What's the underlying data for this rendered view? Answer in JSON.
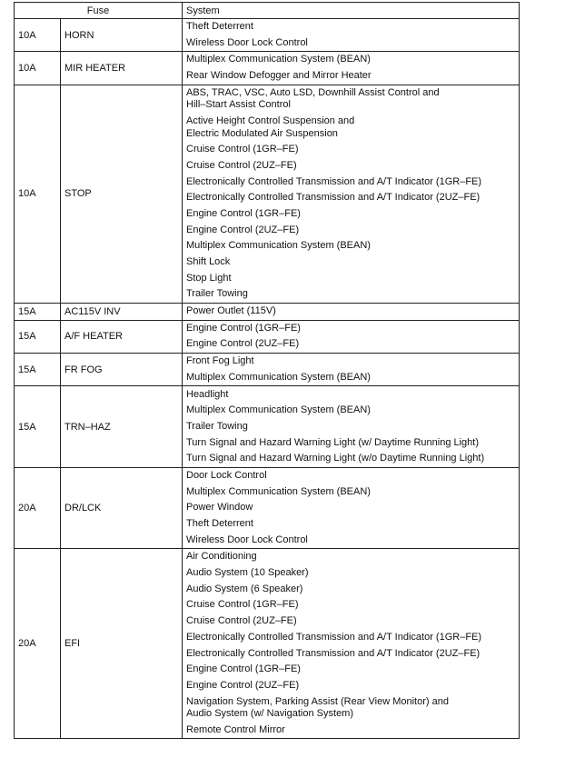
{
  "headers": {
    "fuse": "Fuse",
    "system": "System"
  },
  "rows": [
    {
      "amp": "10A",
      "name": "HORN",
      "systems": [
        "Theft Deterrent",
        "Wireless Door Lock Control"
      ]
    },
    {
      "amp": "10A",
      "name": "MIR HEATER",
      "systems": [
        "Multiplex Communication System (BEAN)",
        "Rear Window Defogger and Mirror Heater"
      ]
    },
    {
      "amp": "10A",
      "name": "STOP",
      "systems": [
        "ABS, TRAC, VSC, Auto LSD, Downhill Assist Control and\nHill–Start Assist Control",
        "Active Height Control Suspension and\nElectric Modulated Air Suspension",
        "Cruise Control (1GR–FE)",
        "Cruise Control (2UZ–FE)",
        "Electronically Controlled Transmission and A/T Indicator (1GR–FE)",
        "Electronically Controlled Transmission and A/T Indicator (2UZ–FE)",
        "Engine Control (1GR–FE)",
        "Engine Control (2UZ–FE)",
        "Multiplex Communication System (BEAN)",
        "Shift Lock",
        "Stop Light",
        "Trailer Towing"
      ]
    },
    {
      "amp": "15A",
      "name": "AC115V INV",
      "systems": [
        "Power Outlet (115V)"
      ]
    },
    {
      "amp": "15A",
      "name": "A/F HEATER",
      "systems": [
        "Engine Control (1GR–FE)",
        "Engine Control (2UZ–FE)"
      ]
    },
    {
      "amp": "15A",
      "name": "FR FOG",
      "systems": [
        "Front Fog Light",
        "Multiplex Communication System (BEAN)"
      ]
    },
    {
      "amp": "15A",
      "name": "TRN–HAZ",
      "systems": [
        "Headlight",
        "Multiplex Communication System (BEAN)",
        "Trailer Towing",
        "Turn Signal and Hazard Warning Light (w/ Daytime Running Light)",
        "Turn Signal and Hazard Warning Light (w/o Daytime Running Light)"
      ]
    },
    {
      "amp": "20A",
      "name": "DR/LCK",
      "systems": [
        "Door Lock Control",
        "Multiplex Communication System (BEAN)",
        "Power Window",
        "Theft Deterrent",
        "Wireless Door Lock Control"
      ]
    },
    {
      "amp": "20A",
      "name": "EFI",
      "systems": [
        "Air Conditioning",
        "Audio System (10 Speaker)",
        "Audio System (6 Speaker)",
        "Cruise Control (1GR–FE)",
        "Cruise Control (2UZ–FE)",
        "Electronically Controlled Transmission and A/T Indicator (1GR–FE)",
        "Electronically Controlled Transmission and A/T Indicator (2UZ–FE)",
        "Engine Control (1GR–FE)",
        "Engine Control (2UZ–FE)",
        "Navigation System, Parking Assist (Rear View Monitor) and\nAudio System (w/ Navigation System)",
        "Remote Control Mirror"
      ]
    }
  ]
}
